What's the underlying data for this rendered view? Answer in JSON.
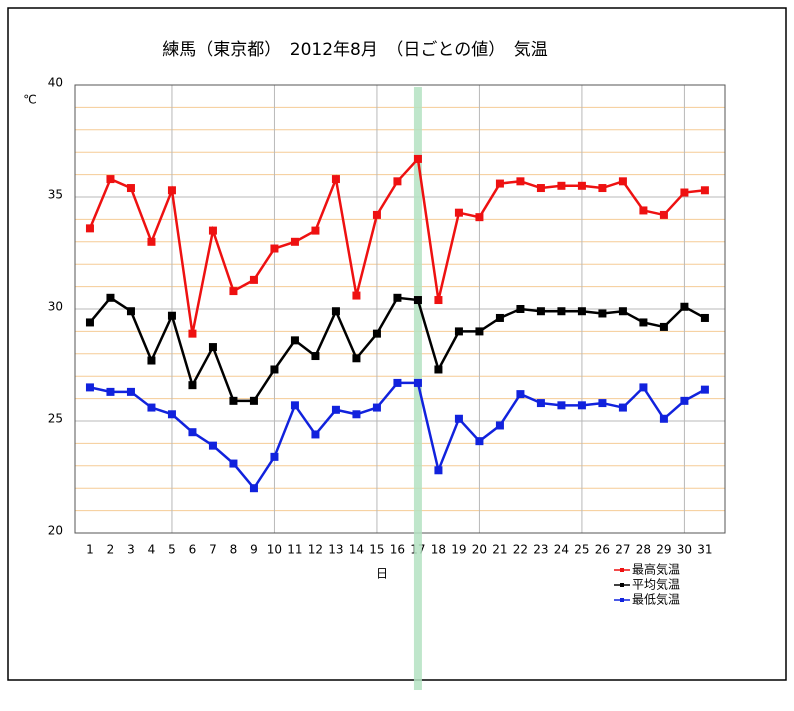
{
  "chart_data": {
    "type": "line",
    "title": "練馬（東京都）　2012年8月　（日ごとの値）　気温",
    "y_label": "℃",
    "x_label": "日",
    "x": [
      1,
      2,
      3,
      4,
      5,
      6,
      7,
      8,
      9,
      10,
      11,
      12,
      13,
      14,
      15,
      16,
      17,
      18,
      19,
      20,
      21,
      22,
      23,
      24,
      25,
      26,
      27,
      28,
      29,
      30,
      31
    ],
    "xlim": [
      0.27,
      31.98
    ],
    "xticks": [
      1,
      2,
      3,
      4,
      5,
      6,
      7,
      8,
      9,
      10,
      11,
      12,
      13,
      14,
      15,
      16,
      17,
      18,
      19,
      20,
      21,
      22,
      23,
      24,
      25,
      26,
      27,
      28,
      29,
      30,
      31
    ],
    "xgrid": [
      5,
      10,
      15,
      20,
      25,
      30
    ],
    "highlight_x": 17,
    "highlight_color": "#b4e2c2",
    "ylim": [
      20,
      40
    ],
    "yticks": [
      20,
      25,
      30,
      35,
      40
    ],
    "yminor_ticks": [
      21,
      22,
      23,
      24,
      26,
      27,
      28,
      29,
      31,
      32,
      33,
      34,
      36,
      37,
      38,
      39
    ],
    "grid": true,
    "legend": "bottom-right",
    "series": [
      {
        "name": "最高気温",
        "color": "#ee1111",
        "values": [
          33.6,
          35.8,
          35.4,
          33.0,
          35.3,
          28.9,
          33.5,
          30.8,
          31.3,
          32.7,
          33.0,
          33.5,
          35.8,
          30.6,
          34.2,
          35.7,
          36.7,
          30.4,
          34.3,
          34.1,
          35.6,
          35.7,
          35.4,
          35.5,
          35.5,
          35.4,
          35.7,
          34.4,
          34.2,
          35.2,
          35.3
        ]
      },
      {
        "name": "平均気温",
        "color": "#000000",
        "values": [
          29.4,
          30.5,
          29.9,
          27.7,
          29.7,
          26.6,
          28.3,
          25.9,
          25.9,
          27.3,
          28.6,
          27.9,
          29.9,
          27.8,
          28.9,
          30.5,
          30.4,
          27.3,
          29.0,
          29.0,
          29.6,
          30.0,
          29.9,
          29.9,
          29.9,
          29.8,
          29.9,
          29.4,
          29.2,
          30.1,
          29.6
        ]
      },
      {
        "name": "最低気温",
        "color": "#1122dd",
        "values": [
          26.5,
          26.3,
          26.3,
          25.6,
          25.3,
          24.5,
          23.9,
          23.1,
          22.0,
          23.4,
          25.7,
          24.4,
          25.5,
          25.3,
          25.6,
          26.7,
          26.7,
          22.8,
          25.1,
          24.1,
          24.8,
          26.2,
          25.8,
          25.7,
          25.7,
          25.8,
          25.6,
          26.5,
          25.1,
          25.9,
          26.4
        ]
      }
    ]
  }
}
